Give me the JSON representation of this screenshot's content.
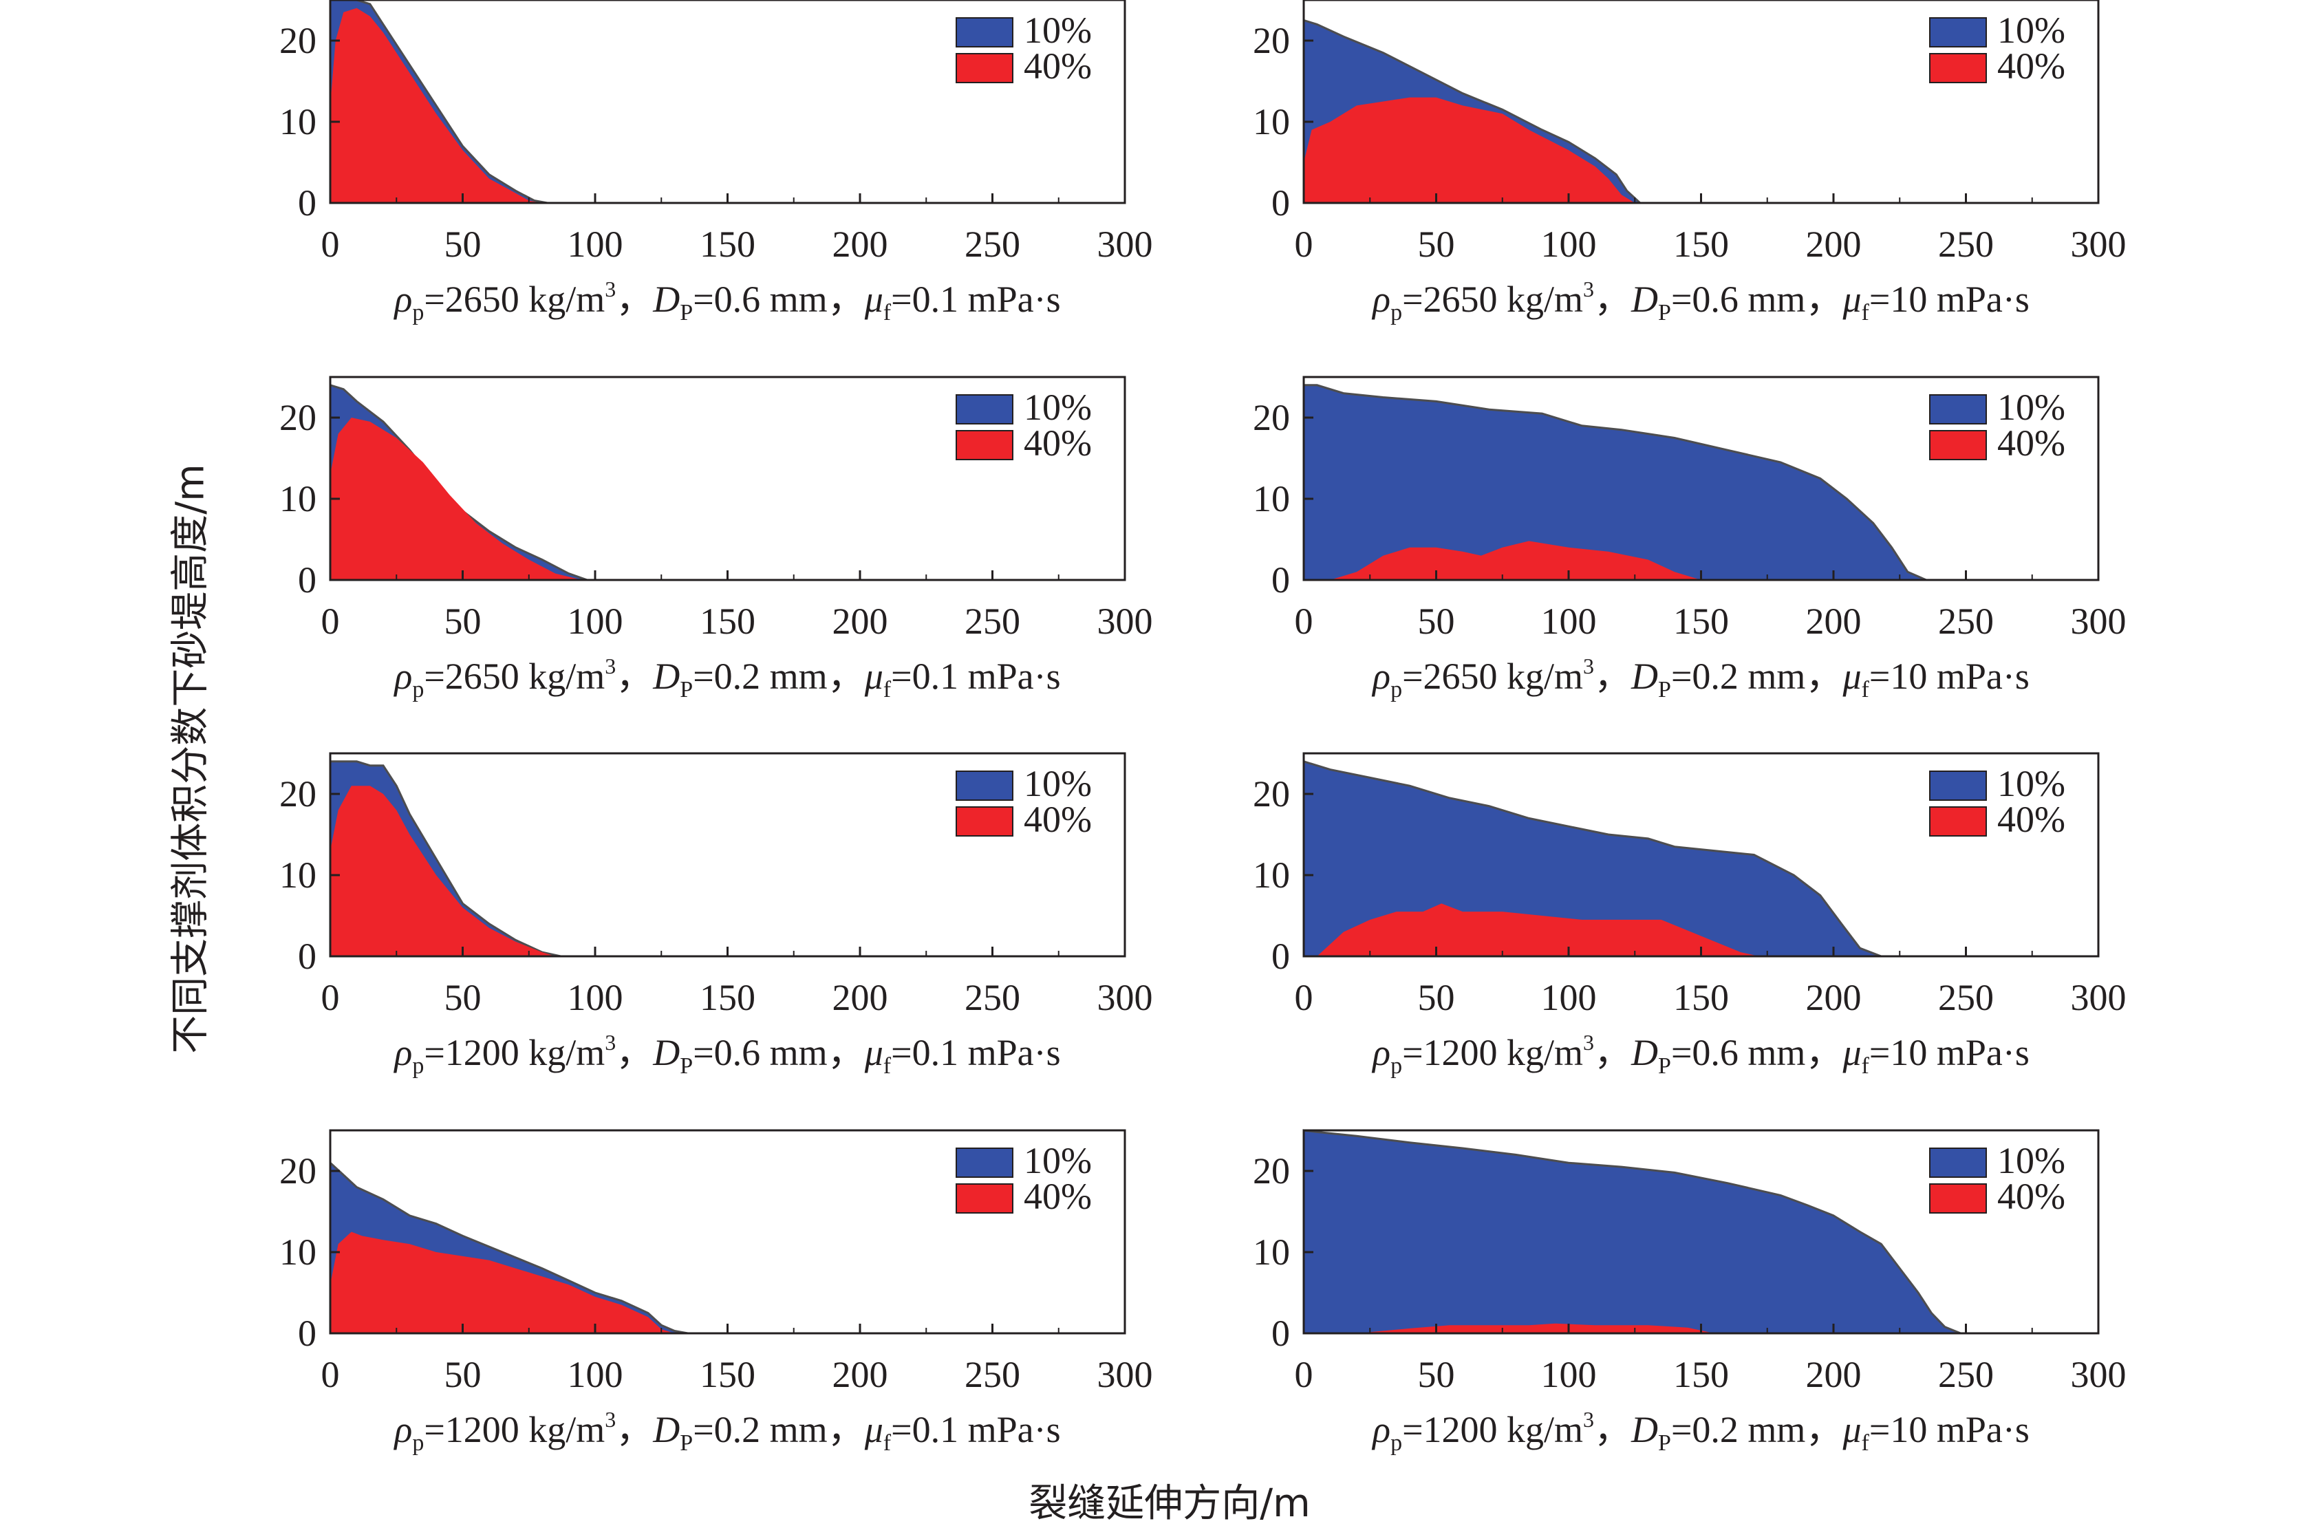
{
  "figure": {
    "ylabel": "不同支撑剂体积分数下砂堤高度/m",
    "xlabel": "裂缝延伸方向/m"
  },
  "colors": {
    "10%": "#3451a6",
    "40%": "#ee242a",
    "edge": "#4d4d4f",
    "frame": "#231f20"
  },
  "chart_data": [
    {
      "type": "area",
      "caption": {
        "rho_sym": "ρ",
        "rho_sub": "p",
        "rho_val": "=2650 kg/m",
        "rho_sup": "3",
        "sep1": "，",
        "d_sym": "D",
        "d_sub": "P",
        "d_val": "=0.6 mm",
        "sep2": "，",
        "mu_sym": "μ",
        "mu_sub": "f",
        "mu_val": "=0.1 mPa·s"
      },
      "xlim": [
        0,
        300
      ],
      "ylim": [
        0,
        25
      ],
      "xticks": [
        0,
        50,
        100,
        150,
        200,
        250,
        300
      ],
      "yticks": [
        0,
        10,
        20
      ],
      "legend": [
        "10%",
        "40%"
      ],
      "legend_position": "top-right",
      "series": [
        {
          "name": "10%",
          "x": [
            0,
            2,
            5,
            10,
            15,
            20,
            30,
            40,
            50,
            60,
            70,
            77,
            82
          ],
          "y": [
            25,
            25,
            25,
            25,
            24.5,
            22,
            17,
            12,
            7,
            3.5,
            1.5,
            0.3,
            0
          ]
        },
        {
          "name": "40%",
          "x": [
            0,
            2,
            5,
            10,
            15,
            20,
            30,
            40,
            50,
            60,
            70,
            75,
            80
          ],
          "y": [
            12,
            20,
            23.5,
            24,
            23,
            21,
            16,
            11,
            6.5,
            3,
            1.2,
            0.3,
            0
          ]
        }
      ]
    },
    {
      "type": "area",
      "caption": {
        "rho_sym": "ρ",
        "rho_sub": "p",
        "rho_val": "=2650 kg/m",
        "rho_sup": "3",
        "sep1": "，",
        "d_sym": "D",
        "d_sub": "P",
        "d_val": "=0.6 mm",
        "sep2": "，",
        "mu_sym": "μ",
        "mu_sub": "f",
        "mu_val": "=10 mPa·s"
      },
      "xlim": [
        0,
        300
      ],
      "ylim": [
        0,
        25
      ],
      "xticks": [
        0,
        50,
        100,
        150,
        200,
        250,
        300
      ],
      "yticks": [
        0,
        10,
        20
      ],
      "legend": [
        "10%",
        "40%"
      ],
      "legend_position": "top-right",
      "series": [
        {
          "name": "10%",
          "x": [
            0,
            5,
            15,
            30,
            45,
            60,
            75,
            90,
            100,
            110,
            118,
            122,
            127
          ],
          "y": [
            22.5,
            22,
            20.5,
            18.5,
            16,
            13.5,
            11.5,
            9,
            7.5,
            5.5,
            3.5,
            1.5,
            0
          ]
        },
        {
          "name": "40%",
          "x": [
            0,
            3,
            10,
            20,
            30,
            40,
            50,
            60,
            75,
            85,
            100,
            110,
            115,
            120,
            125
          ],
          "y": [
            5,
            9,
            10,
            12,
            12.5,
            13,
            13,
            12,
            11,
            9,
            6.5,
            4.5,
            3,
            1,
            0
          ]
        }
      ]
    },
    {
      "type": "area",
      "caption": {
        "rho_sym": "ρ",
        "rho_sub": "p",
        "rho_val": "=2650 kg/m",
        "rho_sup": "3",
        "sep1": "，",
        "d_sym": "D",
        "d_sub": "P",
        "d_val": "=0.2 mm",
        "sep2": "，",
        "mu_sym": "μ",
        "mu_sub": "f",
        "mu_val": "=0.1 mPa·s"
      },
      "xlim": [
        0,
        300
      ],
      "ylim": [
        0,
        25
      ],
      "xticks": [
        0,
        50,
        100,
        150,
        200,
        250,
        300
      ],
      "yticks": [
        0,
        10,
        20
      ],
      "legend": [
        "10%",
        "40%"
      ],
      "legend_position": "top-right",
      "series": [
        {
          "name": "10%",
          "x": [
            0,
            5,
            10,
            20,
            30,
            40,
            50,
            60,
            70,
            80,
            90,
            97
          ],
          "y": [
            24,
            23.5,
            22,
            19.5,
            16,
            12,
            8.5,
            6,
            4,
            2.5,
            0.8,
            0
          ]
        },
        {
          "name": "40%",
          "x": [
            0,
            3,
            8,
            15,
            25,
            35,
            45,
            55,
            65,
            75,
            85,
            95
          ],
          "y": [
            13,
            18,
            20,
            19.5,
            17.5,
            14.5,
            10.5,
            7,
            4.5,
            2.5,
            0.8,
            0
          ]
        }
      ]
    },
    {
      "type": "area",
      "caption": {
        "rho_sym": "ρ",
        "rho_sub": "p",
        "rho_val": "=2650 kg/m",
        "rho_sup": "3",
        "sep1": "，",
        "d_sym": "D",
        "d_sub": "P",
        "d_val": "=0.2 mm",
        "sep2": "，",
        "mu_sym": "μ",
        "mu_sub": "f",
        "mu_val": "=10 mPa·s"
      },
      "xlim": [
        0,
        300
      ],
      "ylim": [
        0,
        25
      ],
      "xticks": [
        0,
        50,
        100,
        150,
        200,
        250,
        300
      ],
      "yticks": [
        0,
        10,
        20
      ],
      "legend": [
        "10%",
        "40%"
      ],
      "legend_position": "top-right",
      "series": [
        {
          "name": "10%",
          "x": [
            0,
            5,
            15,
            30,
            50,
            70,
            90,
            105,
            120,
            140,
            160,
            180,
            195,
            205,
            215,
            222,
            228,
            235
          ],
          "y": [
            24,
            24,
            23,
            22.5,
            22,
            21,
            20.5,
            19,
            18.5,
            17.5,
            16,
            14.5,
            12.5,
            10,
            7,
            4,
            1,
            0
          ]
        },
        {
          "name": "40%",
          "x": [
            10,
            20,
            30,
            40,
            50,
            60,
            67,
            75,
            85,
            100,
            115,
            130,
            140,
            150
          ],
          "y": [
            0,
            1,
            3,
            4,
            4,
            3.5,
            3,
            4,
            4.8,
            4,
            3.5,
            2.5,
            1,
            0
          ]
        }
      ]
    },
    {
      "type": "area",
      "caption": {
        "rho_sym": "ρ",
        "rho_sub": "p",
        "rho_val": "=1200 kg/m",
        "rho_sup": "3",
        "sep1": "，",
        "d_sym": "D",
        "d_sub": "P",
        "d_val": "=0.6 mm",
        "sep2": "，",
        "mu_sym": "μ",
        "mu_sub": "f",
        "mu_val": "=0.1 mPa·s"
      },
      "xlim": [
        0,
        300
      ],
      "ylim": [
        0,
        25
      ],
      "xticks": [
        0,
        50,
        100,
        150,
        200,
        250,
        300
      ],
      "yticks": [
        0,
        10,
        20
      ],
      "legend": [
        "10%",
        "40%"
      ],
      "legend_position": "top-right",
      "series": [
        {
          "name": "10%",
          "x": [
            0,
            5,
            10,
            15,
            20,
            25,
            30,
            40,
            50,
            60,
            70,
            80,
            87
          ],
          "y": [
            24,
            24,
            24,
            23.5,
            23.5,
            21,
            17.5,
            12,
            6.5,
            4,
            2,
            0.5,
            0
          ]
        },
        {
          "name": "40%",
          "x": [
            0,
            3,
            8,
            15,
            20,
            25,
            30,
            40,
            50,
            60,
            70,
            80,
            85
          ],
          "y": [
            13,
            18,
            21,
            21,
            20,
            18,
            15,
            10,
            6,
            3.5,
            1.8,
            0.5,
            0
          ]
        }
      ]
    },
    {
      "type": "area",
      "caption": {
        "rho_sym": "ρ",
        "rho_sub": "p",
        "rho_val": "=1200 kg/m",
        "rho_sup": "3",
        "sep1": "，",
        "d_sym": "D",
        "d_sub": "P",
        "d_val": "=0.6 mm",
        "sep2": "，",
        "mu_sym": "μ",
        "mu_sub": "f",
        "mu_val": "=10 mPa·s"
      },
      "xlim": [
        0,
        300
      ],
      "ylim": [
        0,
        25
      ],
      "xticks": [
        0,
        50,
        100,
        150,
        200,
        250,
        300
      ],
      "yticks": [
        0,
        10,
        20
      ],
      "legend": [
        "10%",
        "40%"
      ],
      "legend_position": "top-right",
      "series": [
        {
          "name": "10%",
          "x": [
            0,
            10,
            25,
            40,
            55,
            70,
            85,
            100,
            115,
            130,
            140,
            155,
            170,
            185,
            195,
            203,
            210,
            218
          ],
          "y": [
            24,
            23,
            22,
            21,
            19.5,
            18.5,
            17,
            16,
            15,
            14.5,
            13.5,
            13,
            12.5,
            10,
            7.5,
            4,
            1,
            0
          ]
        },
        {
          "name": "40%",
          "x": [
            5,
            15,
            25,
            35,
            45,
            52,
            60,
            75,
            90,
            105,
            120,
            135,
            150,
            165,
            172
          ],
          "y": [
            0,
            3,
            4.5,
            5.5,
            5.5,
            6.5,
            5.5,
            5.5,
            5,
            4.5,
            4.5,
            4.5,
            2.5,
            0.5,
            0
          ]
        }
      ]
    },
    {
      "type": "area",
      "caption": {
        "rho_sym": "ρ",
        "rho_sub": "p",
        "rho_val": "=1200 kg/m",
        "rho_sup": "3",
        "sep1": "，",
        "d_sym": "D",
        "d_sub": "P",
        "d_val": "=0.2 mm",
        "sep2": "，",
        "mu_sym": "μ",
        "mu_sub": "f",
        "mu_val": "=0.1 mPa·s"
      },
      "xlim": [
        0,
        300
      ],
      "ylim": [
        0,
        25
      ],
      "xticks": [
        0,
        50,
        100,
        150,
        200,
        250,
        300
      ],
      "yticks": [
        0,
        10,
        20
      ],
      "legend": [
        "10%",
        "40%"
      ],
      "legend_position": "top-right",
      "series": [
        {
          "name": "10%",
          "x": [
            0,
            5,
            10,
            20,
            30,
            40,
            50,
            65,
            80,
            90,
            100,
            110,
            120,
            125,
            130,
            135
          ],
          "y": [
            21,
            19.5,
            18,
            16.5,
            14.5,
            13.5,
            12,
            10,
            8,
            6.5,
            5,
            4,
            2.5,
            1,
            0.3,
            0
          ]
        },
        {
          "name": "40%",
          "x": [
            0,
            3,
            8,
            12,
            20,
            30,
            40,
            50,
            60,
            70,
            80,
            90,
            100,
            110,
            120,
            125,
            130
          ],
          "y": [
            6,
            11,
            12.5,
            12,
            11.5,
            11,
            10,
            9.5,
            9,
            8,
            7,
            6,
            4.5,
            3.5,
            2,
            0.5,
            0
          ]
        }
      ]
    },
    {
      "type": "area",
      "caption": {
        "rho_sym": "ρ",
        "rho_sub": "p",
        "rho_val": "=1200 kg/m",
        "rho_sup": "3",
        "sep1": "，",
        "d_sym": "D",
        "d_sub": "P",
        "d_val": "=0.2 mm",
        "sep2": "，",
        "mu_sym": "μ",
        "mu_sub": "f",
        "mu_val": "=10 mPa·s"
      },
      "xlim": [
        0,
        300
      ],
      "ylim": [
        0,
        25
      ],
      "xticks": [
        0,
        50,
        100,
        150,
        200,
        250,
        300
      ],
      "yticks": [
        0,
        10,
        20
      ],
      "legend": [
        "10%",
        "40%"
      ],
      "legend_position": "top-right",
      "series": [
        {
          "name": "10%",
          "x": [
            0,
            5,
            20,
            40,
            60,
            80,
            100,
            120,
            140,
            160,
            180,
            190,
            200,
            210,
            218,
            225,
            232,
            237,
            242,
            248
          ],
          "y": [
            25,
            24.8,
            24.3,
            23.5,
            22.8,
            22,
            21,
            20.5,
            19.8,
            18.5,
            17,
            15.8,
            14.5,
            12.5,
            11,
            8,
            5,
            2.5,
            0.8,
            0
          ]
        },
        {
          "name": "40%",
          "x": [
            20,
            40,
            55,
            70,
            85,
            95,
            110,
            130,
            145,
            155
          ],
          "y": [
            0,
            0.6,
            1.0,
            1.0,
            1.0,
            1.2,
            1.0,
            1.0,
            0.7,
            0
          ]
        }
      ]
    }
  ]
}
